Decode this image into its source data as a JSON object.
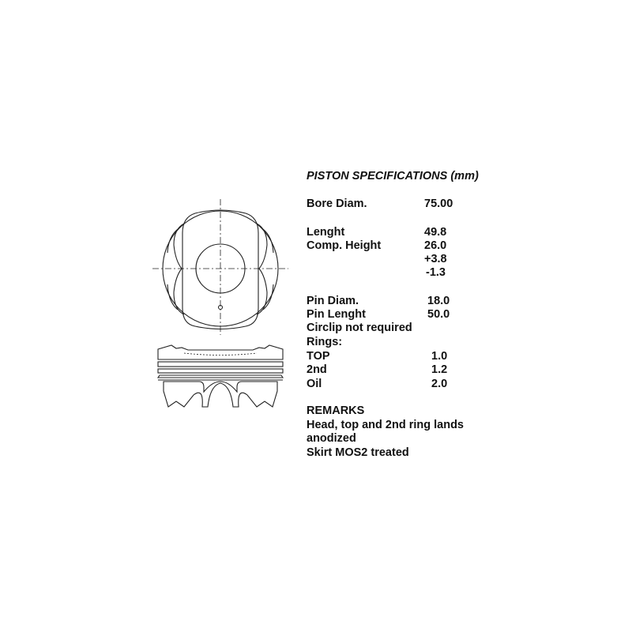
{
  "title": "PISTON SPECIFICATIONS (mm)",
  "specs": [
    {
      "label": "Bore Diam.",
      "value": "75.00"
    },
    {
      "label": "Lenght",
      "value": "49.8"
    },
    {
      "label": "Comp. Height",
      "value": "26.0"
    },
    {
      "label": "",
      "value": "+3.8"
    },
    {
      "label": "",
      "value": " -1.3"
    },
    {
      "label": "Pin Diam.",
      "value": "18.0"
    },
    {
      "label": "Pin Lenght",
      "value": "50.0"
    },
    {
      "label": "Circlip not required",
      "value": ""
    },
    {
      "label": "Rings:",
      "value": ""
    },
    {
      "label": "TOP",
      "value": "1.0"
    },
    {
      "label": "2nd",
      "value": "1.2"
    },
    {
      "label": "Oil",
      "value": "2.0"
    }
  ],
  "remarks": {
    "heading": "REMARKS",
    "lines": [
      "Head, top and 2nd ring lands",
      "anodized",
      "Skirt MOS2 treated"
    ]
  }
}
